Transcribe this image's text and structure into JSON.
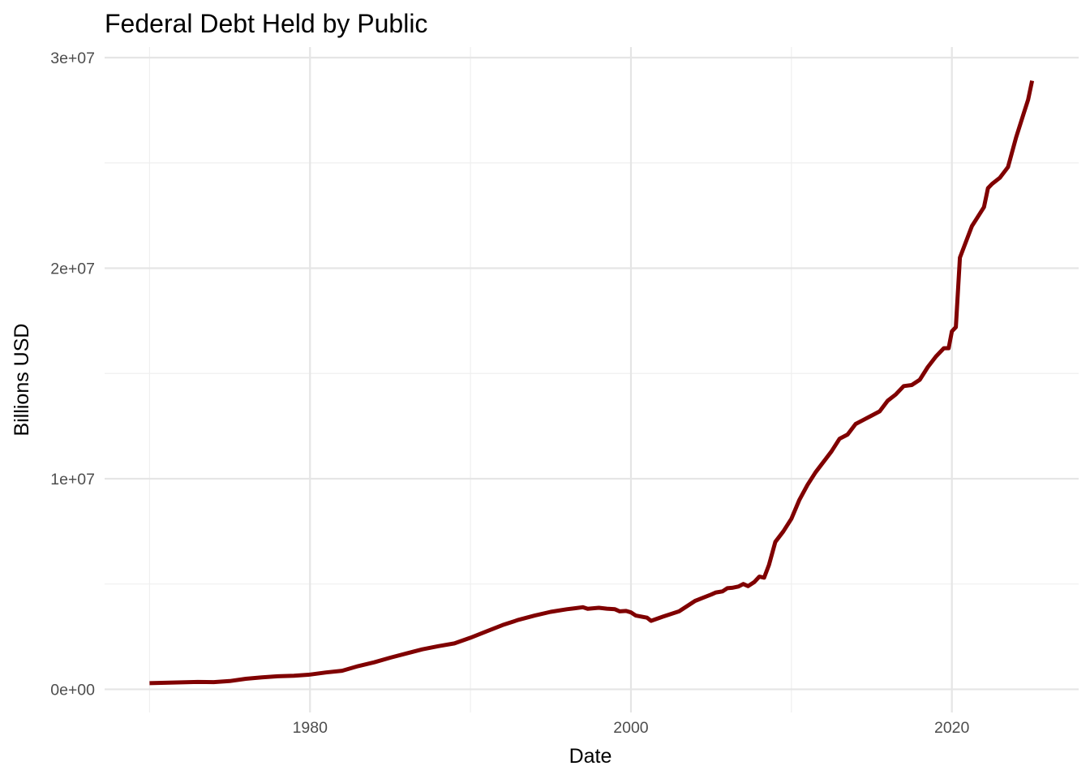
{
  "chart_data": {
    "type": "line",
    "title": "Federal Debt Held by Public",
    "xlabel": "Date",
    "ylabel": "Billions USD",
    "x_ticks": [
      1980,
      2000,
      2020
    ],
    "y_ticks": [
      0,
      10000000,
      20000000,
      30000000
    ],
    "y_tick_labels": [
      "0e+00",
      "1e+07",
      "2e+07",
      "3e+07"
    ],
    "xlim": [
      1967.2,
      2027.9
    ],
    "ylim": [
      -1100000,
      30500000
    ],
    "grid": true,
    "legend": "none",
    "line_color": "#800000",
    "series": [
      {
        "x": [
          1970.0,
          1971.0,
          1972.0,
          1973.0,
          1974.0,
          1975.0,
          1976.0,
          1977.0,
          1978.0,
          1979.0,
          1980.0,
          1981.0,
          1982.0,
          1983.0,
          1984.0,
          1985.0,
          1986.0,
          1987.0,
          1988.0,
          1989.0,
          1990.0,
          1991.0,
          1992.0,
          1993.0,
          1994.0,
          1995.0,
          1996.0,
          1996.5,
          1997.0,
          1997.3,
          1998.0,
          1998.5,
          1999.0,
          1999.3,
          1999.7,
          2000.0,
          2000.3,
          2001.0,
          2001.25,
          2002.0,
          2003.0,
          2004.0,
          2004.5,
          2005.0,
          2005.3,
          2005.7,
          2006.0,
          2006.3,
          2006.7,
          2007.0,
          2007.3,
          2007.7,
          2008.0,
          2008.3,
          2008.6,
          2009.0,
          2009.5,
          2010.0,
          2010.5,
          2011.0,
          2011.5,
          2012.0,
          2012.5,
          2013.0,
          2013.5,
          2014.0,
          2014.5,
          2015.0,
          2015.5,
          2016.0,
          2016.5,
          2017.0,
          2017.5,
          2018.0,
          2018.5,
          2019.0,
          2019.5,
          2019.8,
          2020.0,
          2020.25,
          2020.5,
          2021.0,
          2021.25,
          2021.5,
          2022.0,
          2022.25,
          2022.5,
          2023.0,
          2023.5,
          2024.0,
          2024.5,
          2024.75,
          2025.0
        ],
        "y": [
          290000,
          310000,
          330000,
          350000,
          340000,
          390000,
          500000,
          570000,
          620000,
          640000,
          700000,
          800000,
          880000,
          1100000,
          1280000,
          1500000,
          1700000,
          1900000,
          2050000,
          2180000,
          2450000,
          2750000,
          3050000,
          3300000,
          3500000,
          3680000,
          3800000,
          3850000,
          3900000,
          3820000,
          3870000,
          3830000,
          3800000,
          3700000,
          3720000,
          3650000,
          3500000,
          3400000,
          3250000,
          3450000,
          3700000,
          4200000,
          4350000,
          4500000,
          4600000,
          4650000,
          4800000,
          4820000,
          4880000,
          5000000,
          4900000,
          5100000,
          5350000,
          5300000,
          5900000,
          7000000,
          7500000,
          8100000,
          9000000,
          9700000,
          10300000,
          10800000,
          11300000,
          11900000,
          12100000,
          12600000,
          12800000,
          13000000,
          13200000,
          13700000,
          14000000,
          14400000,
          14450000,
          14700000,
          15300000,
          15800000,
          16200000,
          16200000,
          17000000,
          17200000,
          20500000,
          21500000,
          22000000,
          22300000,
          22900000,
          23800000,
          24000000,
          24300000,
          24800000,
          26200000,
          27400000,
          28000000,
          28900000
        ]
      }
    ]
  }
}
